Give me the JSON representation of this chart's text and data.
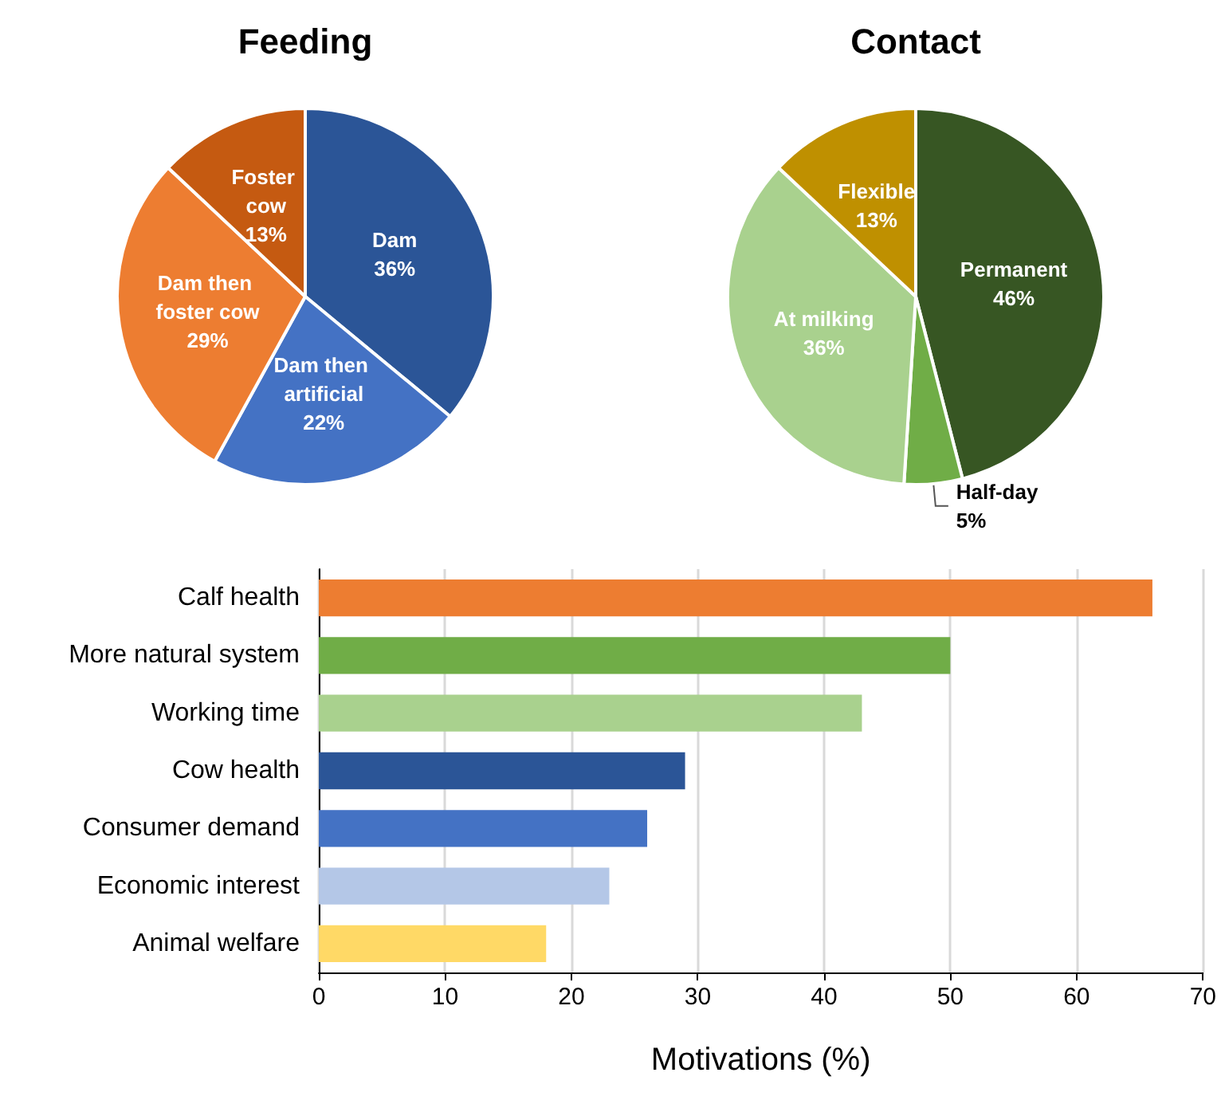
{
  "chart_data": [
    {
      "type": "pie",
      "title": "Feeding",
      "categories": [
        "Dam",
        "Dam then artificial",
        "Dam then foster cow",
        "Foster cow"
      ],
      "values": [
        36,
        22,
        29,
        13
      ],
      "value_labels": [
        "36%",
        "22%",
        "29%",
        "13%"
      ],
      "colors": [
        "#2b5597",
        "#4472c4",
        "#ed7d31",
        "#c55a11"
      ]
    },
    {
      "type": "pie",
      "title": "Contact",
      "categories": [
        "Permanent",
        "Half-day",
        "At milking",
        "Flexible"
      ],
      "values": [
        46,
        5,
        36,
        13
      ],
      "value_labels": [
        "46%",
        "5%",
        "36%",
        "13%"
      ],
      "colors": [
        "#375623",
        "#70ad47",
        "#a9d18e",
        "#bf9000"
      ]
    },
    {
      "type": "bar",
      "orientation": "horizontal",
      "categories": [
        "Calf health",
        "More natural system",
        "Working time",
        "Cow health",
        "Consumer demand",
        "Economic interest",
        "Animal welfare"
      ],
      "values": [
        66,
        50,
        43,
        29,
        26,
        23,
        18
      ],
      "colors": [
        "#ed7d31",
        "#70ad47",
        "#a9d18e",
        "#2b5597",
        "#4472c4",
        "#b4c7e7",
        "#ffd966"
      ],
      "xlabel": "Motivations (%)",
      "xlim": [
        0,
        70
      ],
      "xticks": [
        0,
        10,
        20,
        30,
        40,
        50,
        60,
        70
      ],
      "grid": "x"
    }
  ]
}
